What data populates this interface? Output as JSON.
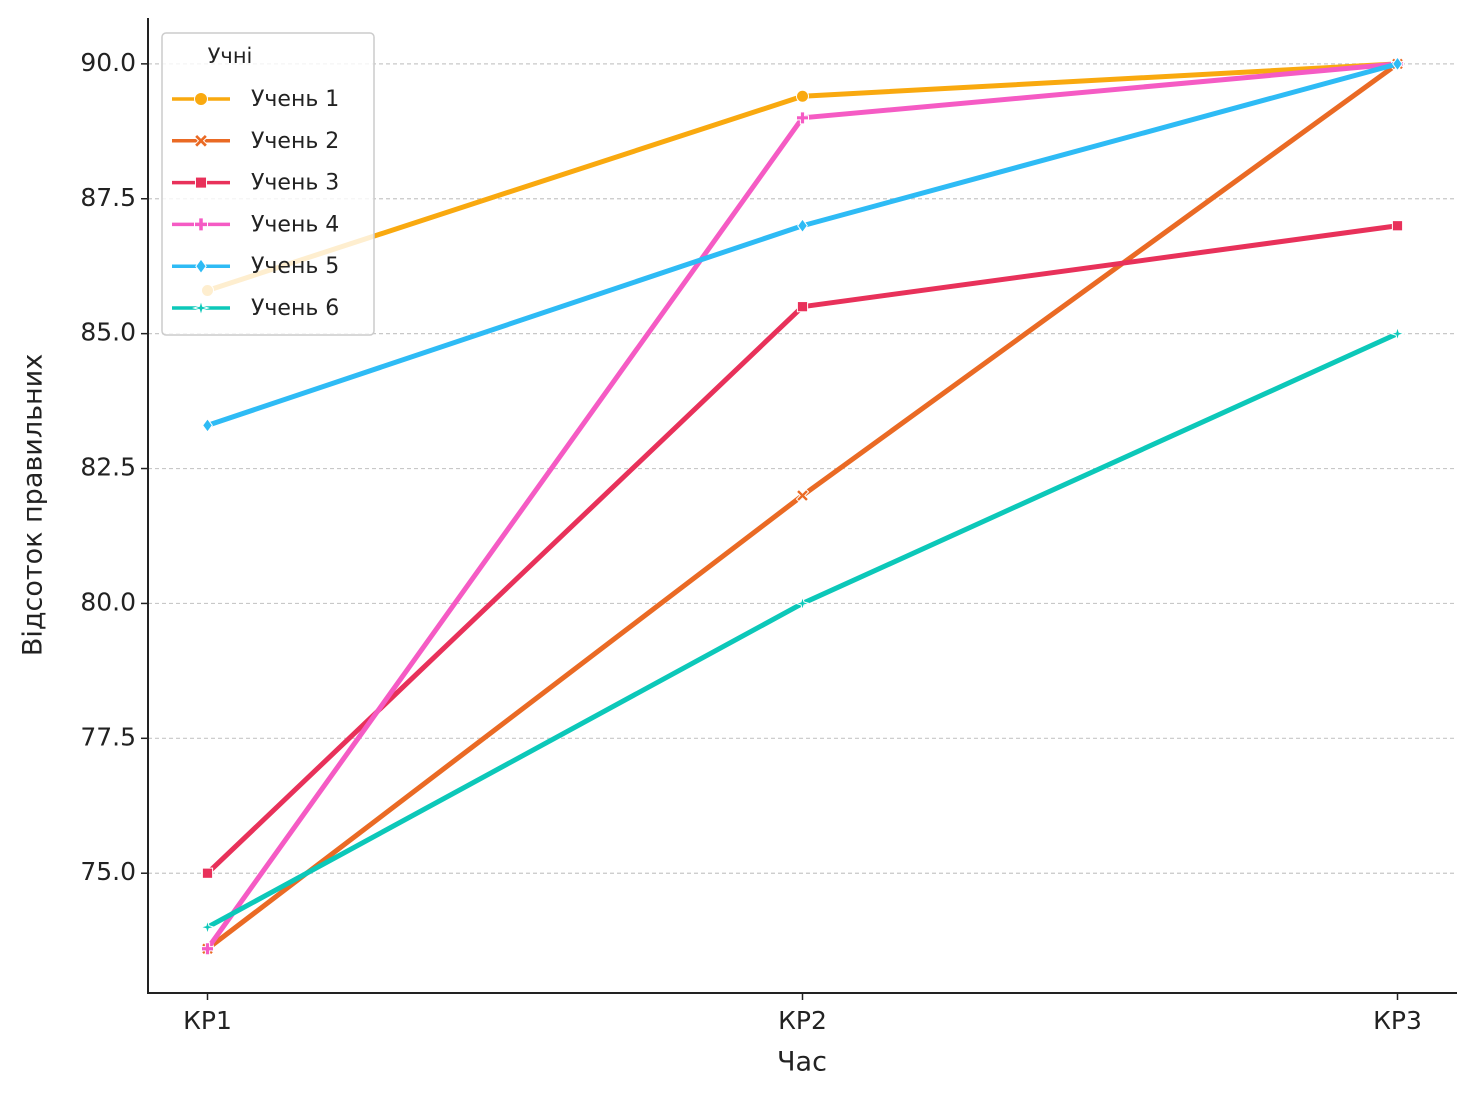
{
  "chart_data": {
    "type": "line",
    "x_label": "Час",
    "y_label": "Відсоток правильних",
    "categories": [
      "КР1",
      "КР2",
      "КР3"
    ],
    "series": [
      {
        "name": "Учень 1",
        "color": "#f9a90f",
        "marker": "circle",
        "values": [
          85.8,
          89.4,
          90
        ]
      },
      {
        "name": "Учень 2",
        "color": "#ea6a24",
        "marker": "x",
        "values": [
          73.6,
          82,
          90
        ]
      },
      {
        "name": "Учень 3",
        "color": "#e8315a",
        "marker": "square",
        "values": [
          75,
          85.5,
          87
        ]
      },
      {
        "name": "Учень 4",
        "color": "#f55bc4",
        "marker": "plus",
        "values": [
          73.6,
          89,
          90
        ]
      },
      {
        "name": "Учень 5",
        "color": "#2ebbf5",
        "marker": "diamond",
        "values": [
          83.3,
          87,
          90
        ]
      },
      {
        "name": "Учень 6",
        "color": "#0cc8b9",
        "marker": "star",
        "values": [
          74,
          80,
          85
        ]
      }
    ],
    "ylim": [
      72.78,
      90.85
    ],
    "yticks": [
      {
        "value": 75,
        "label": "75.0"
      },
      {
        "value": 77.5,
        "label": "77.5"
      },
      {
        "value": 80,
        "label": "80.0"
      },
      {
        "value": 82.5,
        "label": "82.5"
      },
      {
        "value": 85,
        "label": "85.0"
      },
      {
        "value": 87.5,
        "label": "87.5"
      },
      {
        "value": 90,
        "label": "90.0"
      }
    ],
    "grid": true,
    "legend_title": "Учні",
    "legend_position": "upper left"
  }
}
